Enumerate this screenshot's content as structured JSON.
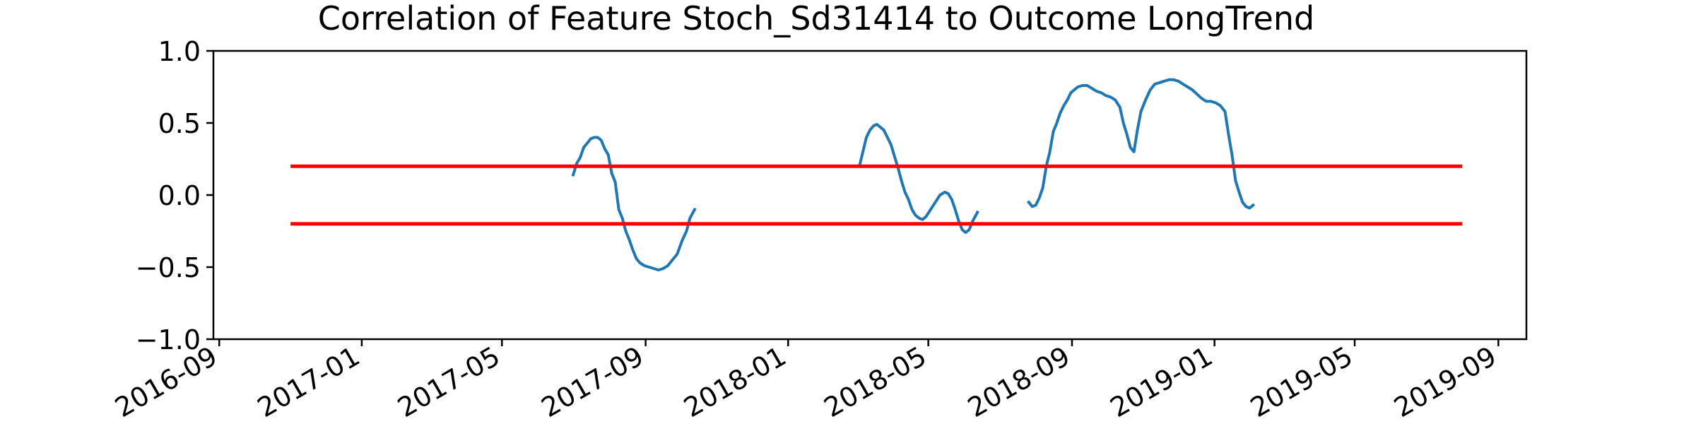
{
  "chart_data": {
    "type": "line",
    "title": "Correlation of Feature Stoch_Sd31414 to Outcome LongTrend",
    "xlabel": "",
    "ylabel": "",
    "xlim": [
      "2016-08-27",
      "2019-09-25"
    ],
    "ylim": [
      -1.0,
      1.0
    ],
    "x_ticks": [
      "2016-09",
      "2017-01",
      "2017-05",
      "2017-09",
      "2018-01",
      "2018-05",
      "2018-09",
      "2019-01",
      "2019-05",
      "2019-09"
    ],
    "y_ticks": [
      "−1.0",
      "−0.5",
      "0.0",
      "0.5",
      "1.0"
    ],
    "grid": false,
    "legend": "none",
    "series": [
      {
        "color": "#1f77b4",
        "segments": [
          [
            [
              "2017-07-01",
              0.14
            ],
            [
              "2017-07-04",
              0.22
            ],
            [
              "2017-07-07",
              0.26
            ],
            [
              "2017-07-10",
              0.33
            ],
            [
              "2017-07-13",
              0.36
            ],
            [
              "2017-07-16",
              0.39
            ],
            [
              "2017-07-19",
              0.4
            ],
            [
              "2017-07-22",
              0.4
            ],
            [
              "2017-07-25",
              0.38
            ],
            [
              "2017-07-28",
              0.32
            ],
            [
              "2017-07-31",
              0.28
            ],
            [
              "2017-08-03",
              0.15
            ],
            [
              "2017-08-06",
              0.09
            ],
            [
              "2017-08-09",
              -0.1
            ],
            [
              "2017-08-12",
              -0.16
            ],
            [
              "2017-08-15",
              -0.25
            ],
            [
              "2017-08-18",
              -0.31
            ],
            [
              "2017-08-21",
              -0.38
            ],
            [
              "2017-08-24",
              -0.44
            ],
            [
              "2017-08-27",
              -0.47
            ],
            [
              "2017-08-31",
              -0.49
            ],
            [
              "2017-09-04",
              -0.5
            ],
            [
              "2017-09-08",
              -0.51
            ],
            [
              "2017-09-12",
              -0.52
            ],
            [
              "2017-09-16",
              -0.51
            ],
            [
              "2017-09-20",
              -0.49
            ],
            [
              "2017-09-24",
              -0.45
            ],
            [
              "2017-09-28",
              -0.41
            ],
            [
              "2017-10-02",
              -0.32
            ],
            [
              "2017-10-06",
              -0.25
            ],
            [
              "2017-10-09",
              -0.16
            ],
            [
              "2017-10-13",
              -0.1
            ]
          ],
          [
            [
              "2018-03-03",
              0.2
            ],
            [
              "2018-03-06",
              0.3
            ],
            [
              "2018-03-09",
              0.4
            ],
            [
              "2018-03-12",
              0.45
            ],
            [
              "2018-03-15",
              0.48
            ],
            [
              "2018-03-18",
              0.49
            ],
            [
              "2018-03-21",
              0.47
            ],
            [
              "2018-03-24",
              0.45
            ],
            [
              "2018-03-27",
              0.4
            ],
            [
              "2018-03-30",
              0.35
            ],
            [
              "2018-04-02",
              0.27
            ],
            [
              "2018-04-05",
              0.19
            ],
            [
              "2018-04-08",
              0.1
            ],
            [
              "2018-04-11",
              0.02
            ],
            [
              "2018-04-14",
              -0.03
            ],
            [
              "2018-04-17",
              -0.1
            ],
            [
              "2018-04-20",
              -0.14
            ],
            [
              "2018-04-23",
              -0.16
            ],
            [
              "2018-04-26",
              -0.17
            ],
            [
              "2018-04-29",
              -0.15
            ],
            [
              "2018-05-03",
              -0.1
            ],
            [
              "2018-05-07",
              -0.05
            ],
            [
              "2018-05-11",
              0.0
            ],
            [
              "2018-05-15",
              0.02
            ],
            [
              "2018-05-18",
              0.01
            ],
            [
              "2018-05-21",
              -0.03
            ],
            [
              "2018-05-24",
              -0.1
            ],
            [
              "2018-05-27",
              -0.18
            ],
            [
              "2018-05-30",
              -0.24
            ],
            [
              "2018-06-02",
              -0.26
            ],
            [
              "2018-06-05",
              -0.24
            ],
            [
              "2018-06-08",
              -0.18
            ],
            [
              "2018-06-12",
              -0.12
            ]
          ],
          [
            [
              "2018-07-26",
              -0.05
            ],
            [
              "2018-07-29",
              -0.08
            ],
            [
              "2018-08-01",
              -0.07
            ],
            [
              "2018-08-04",
              -0.02
            ],
            [
              "2018-08-07",
              0.05
            ],
            [
              "2018-08-10",
              0.2
            ],
            [
              "2018-08-13",
              0.3
            ],
            [
              "2018-08-16",
              0.44
            ],
            [
              "2018-08-19",
              0.5
            ],
            [
              "2018-08-22",
              0.57
            ],
            [
              "2018-08-25",
              0.62
            ],
            [
              "2018-08-28",
              0.66
            ],
            [
              "2018-08-31",
              0.71
            ],
            [
              "2018-09-03",
              0.73
            ],
            [
              "2018-09-06",
              0.75
            ],
            [
              "2018-09-10",
              0.76
            ],
            [
              "2018-09-14",
              0.76
            ],
            [
              "2018-09-18",
              0.74
            ],
            [
              "2018-09-22",
              0.72
            ],
            [
              "2018-09-26",
              0.71
            ],
            [
              "2018-09-30",
              0.69
            ],
            [
              "2018-10-04",
              0.68
            ],
            [
              "2018-10-08",
              0.66
            ],
            [
              "2018-10-12",
              0.61
            ],
            [
              "2018-10-15",
              0.5
            ],
            [
              "2018-10-18",
              0.42
            ],
            [
              "2018-10-21",
              0.33
            ],
            [
              "2018-10-24",
              0.3
            ],
            [
              "2018-10-27",
              0.45
            ],
            [
              "2018-10-30",
              0.58
            ],
            [
              "2018-11-03",
              0.66
            ],
            [
              "2018-11-07",
              0.73
            ],
            [
              "2018-11-11",
              0.77
            ],
            [
              "2018-11-15",
              0.78
            ],
            [
              "2018-11-19",
              0.79
            ],
            [
              "2018-11-23",
              0.8
            ],
            [
              "2018-11-27",
              0.8
            ],
            [
              "2018-12-01",
              0.79
            ],
            [
              "2018-12-05",
              0.77
            ],
            [
              "2018-12-09",
              0.75
            ],
            [
              "2018-12-13",
              0.73
            ],
            [
              "2018-12-17",
              0.7
            ],
            [
              "2018-12-21",
              0.67
            ],
            [
              "2018-12-25",
              0.65
            ],
            [
              "2018-12-29",
              0.65
            ],
            [
              "2019-01-02",
              0.64
            ],
            [
              "2019-01-06",
              0.62
            ],
            [
              "2019-01-10",
              0.58
            ],
            [
              "2019-01-13",
              0.42
            ],
            [
              "2019-01-16",
              0.28
            ],
            [
              "2019-01-19",
              0.1
            ],
            [
              "2019-01-22",
              0.02
            ],
            [
              "2019-01-25",
              -0.05
            ],
            [
              "2019-01-28",
              -0.08
            ],
            [
              "2019-01-31",
              -0.09
            ],
            [
              "2019-02-03",
              -0.07
            ]
          ]
        ]
      }
    ],
    "hlines": [
      {
        "y": 0.2,
        "x_start": "2016-11-01",
        "x_end": "2019-08-01",
        "color": "#ff0000"
      },
      {
        "y": -0.2,
        "x_start": "2016-11-01",
        "x_end": "2019-08-01",
        "color": "#ff0000"
      }
    ]
  }
}
